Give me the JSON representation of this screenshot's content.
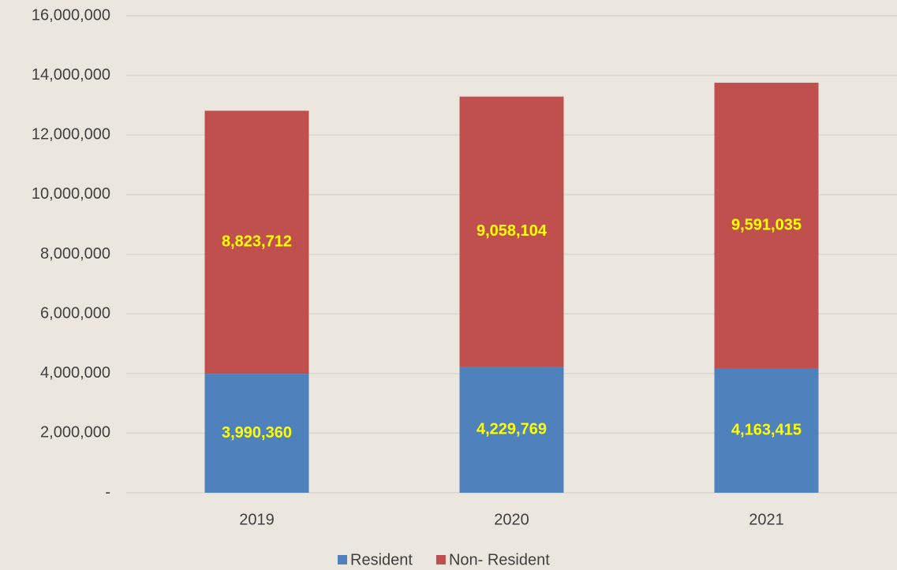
{
  "chart_data": {
    "type": "stacked_bar",
    "categories": [
      "2019",
      "2020",
      "2021"
    ],
    "series": [
      {
        "name": "Resident",
        "color": "#4f81bd",
        "values": [
          3990360,
          4229769,
          4163415
        ],
        "value_labels": [
          "3,990,360",
          "4,229,769",
          "4,163,415"
        ]
      },
      {
        "name": "Non- Resident",
        "color": "#c0504d",
        "values": [
          8823712,
          9058104,
          9591035
        ],
        "value_labels": [
          "8,823,712",
          "9,058,104",
          "9,591,035"
        ]
      }
    ],
    "ylim": [
      0,
      16000000
    ],
    "yticks": [
      {
        "value": 0,
        "label": "-"
      },
      {
        "value": 2000000,
        "label": "2,000,000"
      },
      {
        "value": 4000000,
        "label": "4,000,000"
      },
      {
        "value": 6000000,
        "label": "6,000,000"
      },
      {
        "value": 8000000,
        "label": "8,000,000"
      },
      {
        "value": 10000000,
        "label": "10,000,000"
      },
      {
        "value": 12000000,
        "label": "12,000,000"
      },
      {
        "value": 14000000,
        "label": "14,000,000"
      },
      {
        "value": 16000000,
        "label": "16,000,000"
      }
    ],
    "grid": true,
    "legend": "bottom",
    "value_label_color": "#ffff00"
  }
}
